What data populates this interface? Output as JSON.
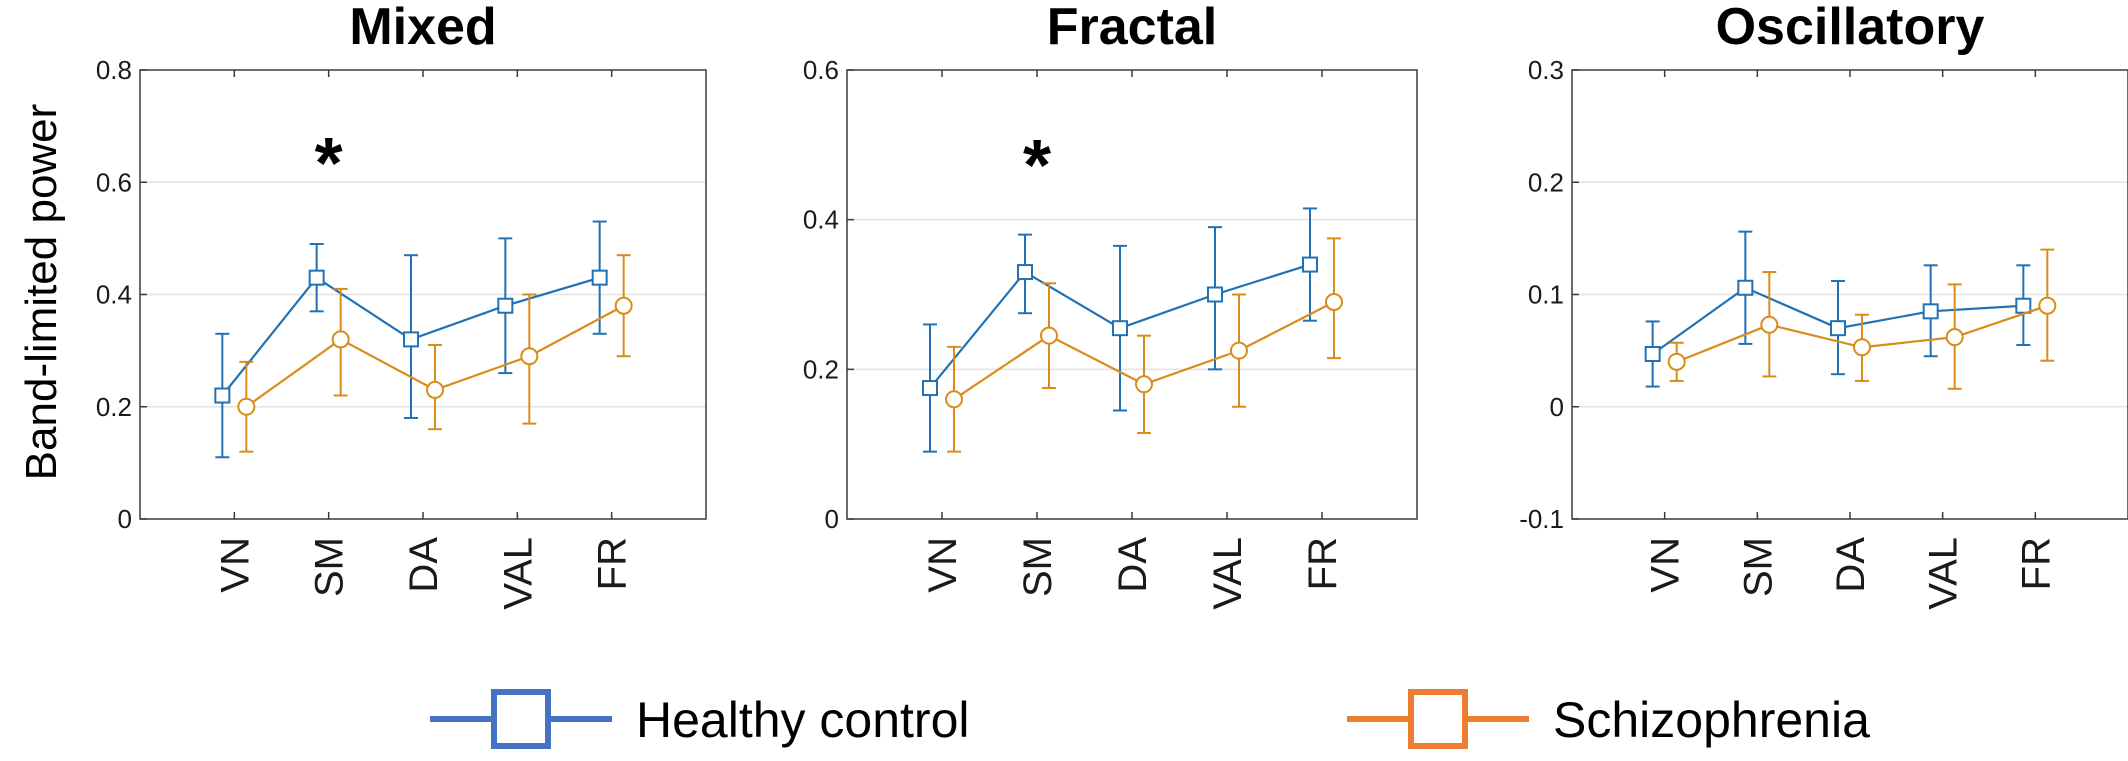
{
  "chart_data": [
    {
      "type": "line",
      "title": "Mixed",
      "ylabel": "Band-limited power",
      "xlabel": "",
      "categories": [
        "VN",
        "SM",
        "DA",
        "VAL",
        "FR"
      ],
      "ylim": [
        0,
        0.8
      ],
      "yticks": [
        "0",
        "0.2",
        "0.4",
        "0.6",
        "0.8"
      ],
      "ytick_values": [
        0,
        0.2,
        0.4,
        0.6,
        0.8
      ],
      "grid": "horizontal",
      "annotation": {
        "text": "*",
        "category": "SM",
        "y": 0.65
      },
      "series": [
        {
          "name": "Healthy control",
          "marker": "square",
          "color": "#2171b5",
          "values": [
            0.22,
            0.43,
            0.32,
            0.38,
            0.43
          ],
          "err_low": [
            0.11,
            0.37,
            0.18,
            0.26,
            0.33
          ],
          "err_high": [
            0.33,
            0.49,
            0.47,
            0.5,
            0.53
          ]
        },
        {
          "name": "Schizophrenia",
          "marker": "circle",
          "color": "#d98c1a",
          "values": [
            0.2,
            0.32,
            0.23,
            0.29,
            0.38
          ],
          "err_low": [
            0.12,
            0.22,
            0.16,
            0.17,
            0.29
          ],
          "err_high": [
            0.28,
            0.41,
            0.31,
            0.4,
            0.47
          ]
        }
      ]
    },
    {
      "type": "line",
      "title": "Fractal",
      "ylabel": "",
      "xlabel": "",
      "categories": [
        "VN",
        "SM",
        "DA",
        "VAL",
        "FR"
      ],
      "ylim": [
        0,
        0.6
      ],
      "yticks": [
        "0",
        "0.2",
        "0.4",
        "0.6"
      ],
      "ytick_values": [
        0,
        0.2,
        0.4,
        0.6
      ],
      "grid": "horizontal",
      "annotation": {
        "text": "*",
        "category": "SM",
        "y": 0.485
      },
      "series": [
        {
          "name": "Healthy control",
          "marker": "square",
          "color": "#2171b5",
          "values": [
            0.175,
            0.33,
            0.255,
            0.3,
            0.34
          ],
          "err_low": [
            0.09,
            0.275,
            0.145,
            0.2,
            0.265
          ],
          "err_high": [
            0.26,
            0.38,
            0.365,
            0.39,
            0.415
          ]
        },
        {
          "name": "Schizophrenia",
          "marker": "circle",
          "color": "#d98c1a",
          "values": [
            0.16,
            0.245,
            0.18,
            0.225,
            0.29
          ],
          "err_low": [
            0.09,
            0.175,
            0.115,
            0.15,
            0.215
          ],
          "err_high": [
            0.23,
            0.315,
            0.245,
            0.3,
            0.375
          ]
        }
      ]
    },
    {
      "type": "line",
      "title": "Oscillatory",
      "ylabel": "",
      "xlabel": "",
      "categories": [
        "VN",
        "SM",
        "DA",
        "VAL",
        "FR"
      ],
      "ylim": [
        -0.1,
        0.3
      ],
      "yticks": [
        "-0.1",
        "0",
        "0.1",
        "0.2",
        "0.3"
      ],
      "ytick_values": [
        -0.1,
        0,
        0.1,
        0.2,
        0.3
      ],
      "grid": "horizontal",
      "series": [
        {
          "name": "Healthy control",
          "marker": "square",
          "color": "#2171b5",
          "values": [
            0.047,
            0.106,
            0.07,
            0.085,
            0.09
          ],
          "err_low": [
            0.018,
            0.056,
            0.029,
            0.045,
            0.055
          ],
          "err_high": [
            0.076,
            0.156,
            0.112,
            0.126,
            0.126
          ]
        },
        {
          "name": "Schizophrenia",
          "marker": "circle",
          "color": "#d98c1a",
          "values": [
            0.04,
            0.073,
            0.053,
            0.062,
            0.09
          ],
          "err_low": [
            0.023,
            0.027,
            0.023,
            0.016,
            0.041
          ],
          "err_high": [
            0.057,
            0.12,
            0.082,
            0.109,
            0.14
          ]
        }
      ]
    }
  ],
  "legend": {
    "placement": "bottom",
    "items": [
      {
        "label": "Healthy control",
        "marker": "square",
        "color": "#4472c4"
      },
      {
        "label": "Schizophrenia",
        "marker": "square",
        "color": "#ed7d31"
      }
    ]
  }
}
